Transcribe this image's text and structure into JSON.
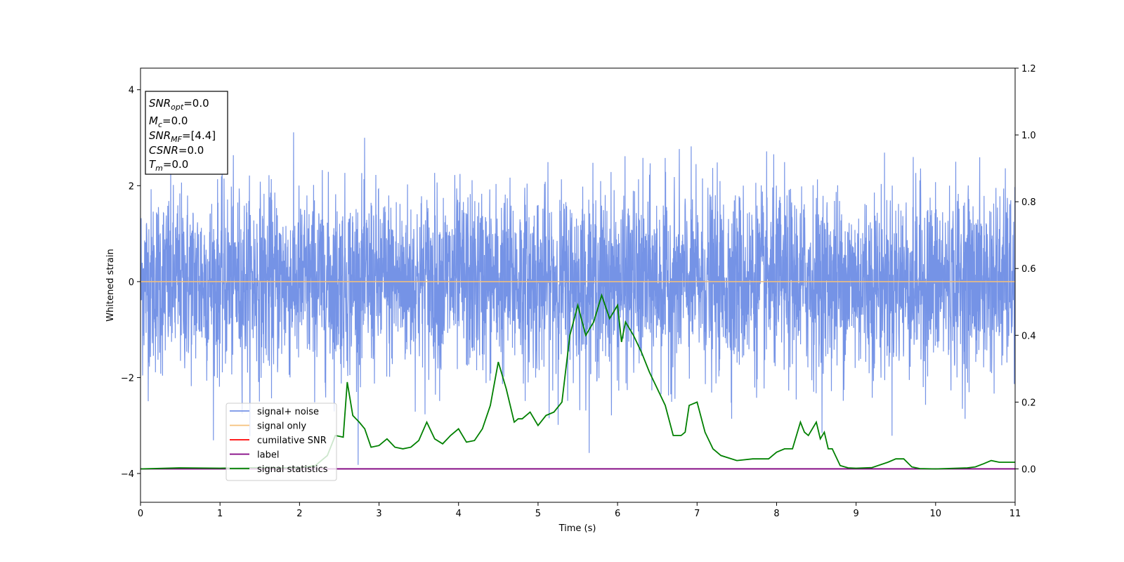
{
  "chart_data": {
    "type": "line",
    "xlabel": "Time (s)",
    "ylabel": "Whitened strain",
    "xlim": [
      0,
      11
    ],
    "ylim_left": [
      -4.6,
      4.45
    ],
    "ylim_right": [
      -0.1,
      1.2
    ],
    "x_ticks": [
      "0",
      "1",
      "2",
      "3",
      "4",
      "5",
      "6",
      "7",
      "8",
      "9",
      "10",
      "11"
    ],
    "y_ticks_left": [
      "4",
      "2",
      "0",
      "−2",
      "−4"
    ],
    "y_ticks_right": [
      "1.2",
      "1.0",
      "0.8",
      "0.6",
      "0.4",
      "0.2",
      "0.0"
    ],
    "grid": false,
    "legend_position": "lower-left",
    "series": [
      {
        "name": "signal+ noise",
        "color": "#7593e6",
        "axis": "left",
        "description": "noisy whitened strain roughly within [-4.2, 4.05]",
        "extremes": {
          "max": 4.05,
          "min": -4.2
        }
      },
      {
        "name": "signal only",
        "color": "#f5c07a",
        "axis": "left",
        "x": [
          0,
          11
        ],
        "y": [
          0,
          0
        ]
      },
      {
        "name": "cumilative SNR",
        "color": "#ff0000",
        "axis": "right",
        "x": [],
        "y": []
      },
      {
        "name": "label",
        "color": "#800080",
        "axis": "right",
        "x": [
          0,
          11
        ],
        "y": [
          0,
          0
        ]
      },
      {
        "name": "signal statistics",
        "color": "#008000",
        "axis": "right",
        "x": [
          0,
          0.5,
          1.0,
          1.5,
          2.0,
          2.2,
          2.35,
          2.45,
          2.55,
          2.6,
          2.67,
          2.75,
          2.82,
          2.9,
          3.0,
          3.1,
          3.2,
          3.3,
          3.4,
          3.5,
          3.6,
          3.7,
          3.8,
          3.9,
          4.0,
          4.1,
          4.2,
          4.3,
          4.4,
          4.5,
          4.6,
          4.7,
          4.75,
          4.8,
          4.9,
          5.0,
          5.1,
          5.2,
          5.3,
          5.4,
          5.5,
          5.6,
          5.7,
          5.8,
          5.9,
          6.0,
          6.05,
          6.1,
          6.2,
          6.3,
          6.4,
          6.5,
          6.6,
          6.7,
          6.8,
          6.85,
          6.9,
          7.0,
          7.1,
          7.2,
          7.3,
          7.5,
          7.7,
          7.9,
          8.0,
          8.1,
          8.2,
          8.3,
          8.35,
          8.4,
          8.5,
          8.55,
          8.6,
          8.65,
          8.7,
          8.8,
          8.9,
          9.0,
          9.2,
          9.4,
          9.5,
          9.6,
          9.7,
          9.8,
          10.0,
          10.4,
          10.5,
          10.6,
          10.7,
          10.8,
          11.0
        ],
        "y": [
          0.0,
          0.003,
          0.002,
          0.004,
          0.003,
          0.01,
          0.04,
          0.1,
          0.095,
          0.26,
          0.16,
          0.14,
          0.12,
          0.065,
          0.07,
          0.09,
          0.065,
          0.06,
          0.065,
          0.085,
          0.14,
          0.09,
          0.075,
          0.1,
          0.12,
          0.08,
          0.085,
          0.12,
          0.19,
          0.32,
          0.24,
          0.14,
          0.15,
          0.15,
          0.17,
          0.13,
          0.16,
          0.17,
          0.2,
          0.4,
          0.49,
          0.4,
          0.44,
          0.52,
          0.45,
          0.49,
          0.38,
          0.44,
          0.4,
          0.35,
          0.29,
          0.24,
          0.19,
          0.1,
          0.1,
          0.11,
          0.19,
          0.2,
          0.11,
          0.06,
          0.04,
          0.025,
          0.03,
          0.03,
          0.05,
          0.06,
          0.06,
          0.14,
          0.11,
          0.1,
          0.14,
          0.09,
          0.11,
          0.06,
          0.06,
          0.01,
          0.003,
          0.002,
          0.004,
          0.02,
          0.03,
          0.03,
          0.006,
          0.001,
          0.0,
          0.003,
          0.006,
          0.015,
          0.025,
          0.02,
          0.02
        ]
      }
    ],
    "info_box": {
      "lines": [
        "SNR_opt=0.0",
        "M_c=0.0",
        "SNR_MF=[4.4]",
        "CSNR=0.0",
        "T_m=0.0"
      ]
    }
  },
  "info": {
    "snr_opt_main": "SNR",
    "snr_opt_sub": "opt",
    "snr_opt_val": "=0.0",
    "mc_main": "M",
    "mc_sub": "c",
    "mc_val": "=0.0",
    "snr_mf_main": "SNR",
    "snr_mf_sub": "MF",
    "snr_mf_val": "=[4.4]",
    "csnr_main": "CSNR",
    "csnr_val": "=0.0",
    "tm_main": "T",
    "tm_sub": "m",
    "tm_val": "=0.0"
  },
  "legend": [
    {
      "label": "signal+ noise",
      "color": "#7593e6"
    },
    {
      "label": "signal only",
      "color": "#f5c07a"
    },
    {
      "label": "cumilative SNR",
      "color": "#ff0000"
    },
    {
      "label": "label",
      "color": "#800080"
    },
    {
      "label": "signal statistics",
      "color": "#008000"
    }
  ]
}
